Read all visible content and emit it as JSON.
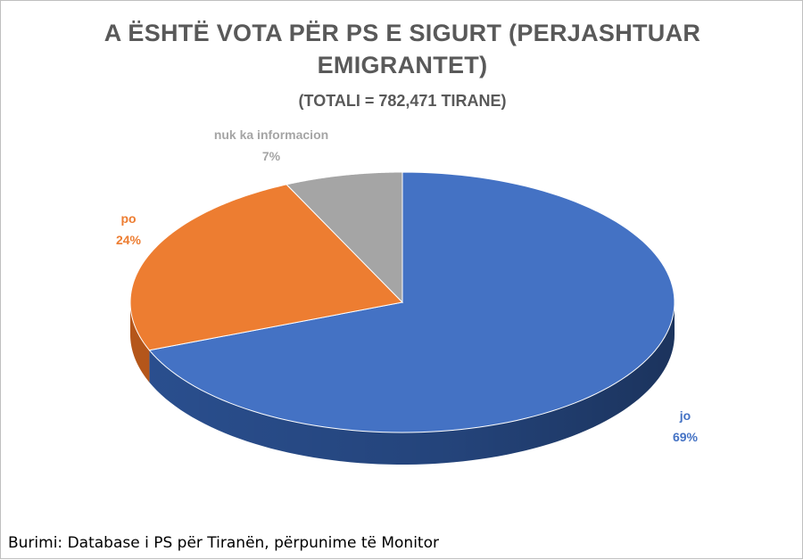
{
  "chart_data": {
    "type": "pie",
    "title_lines": [
      "A ËSHTË VOTA PËR PS E SIGURT (PERJASHTUAR",
      "EMIGRANTET)"
    ],
    "subtitle": "(TOTALI = 782,471 TIRANE)",
    "slices": [
      {
        "label": "jo",
        "value": 69,
        "value_label": "69%",
        "color": "#4472C4",
        "side_color": "#2A4F8F"
      },
      {
        "label": "po",
        "value": 24,
        "value_label": "24%",
        "color": "#ED7D31",
        "side_color": "#B5561A"
      },
      {
        "label": "nuk ka informacion",
        "value": 7,
        "value_label": "7%",
        "color": "#A5A5A5",
        "side_color": "#7A7A7A"
      }
    ]
  },
  "source_text": "Burimi: Database i PS për Tiranën, përpunime të Monitor"
}
